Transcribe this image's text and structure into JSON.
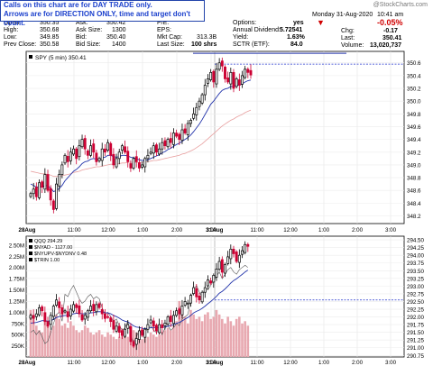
{
  "annotation": {
    "line1": "Calls on this chart are for DAY TRADE only.",
    "line2": "Arrows are for DIRECTION ONLY, time and target don't count."
  },
  "watermark": "@StockCharts.com",
  "header": {
    "date": "Monday  31-Aug-2020",
    "time": "10:41 am",
    "change_pct": "-0.05%",
    "labels": {
      "open": "Open:",
      "high": "High:",
      "low": "Low:",
      "prev_close": "Prev Close:",
      "ask": "Ask:",
      "ask_size": "Ask Size:",
      "bid": "Bid:",
      "bid_size": "Bid Size:",
      "pe": "P/E:",
      "eps": "EPS:",
      "mkt_cap": "Mkt Cap:",
      "last_size": "Last Size:",
      "options": "Options:",
      "annual_dividend": "Annual Dividend:",
      "yield": "Yield:",
      "sctr": "SCTR (ETF):",
      "chg": "Chg:",
      "last": "Last:",
      "volume": "Volume:"
    },
    "values": {
      "open": "350.35",
      "high": "350.68",
      "low": "349.85",
      "prev_close": "350.58",
      "ask": "350.42",
      "ask_size": "1300",
      "bid": "350.40",
      "bid_size": "1400",
      "pe": "",
      "eps": "",
      "mkt_cap": "313.3B",
      "last_size": "100 shrs",
      "options": "yes",
      "annual_dividend": "5.72541",
      "yield": "1.63%",
      "sctr": "84.0",
      "chg": "-0.17",
      "last": "350.41",
      "volume": "13,020,737"
    }
  },
  "colors": {
    "up": "#000000",
    "down": "#cc0033",
    "ma": "#2233aa",
    "ma_slow": "#e8a0a0",
    "dotline": "#2233cc",
    "volume": "#e8a8b0",
    "breadth": "#000000"
  },
  "chart_data": [
    {
      "type": "candlestick",
      "legend": "SPY (5 min) 350.41",
      "x_ticks": [
        "28Aug",
        "11:00",
        "12:00",
        "1:00",
        "2:00",
        "3:00",
        "31Aug",
        "11:00",
        "12:00",
        "1:00",
        "2:00",
        "3:00"
      ],
      "y_ticks": [
        "350.6",
        "350.4",
        "350.2",
        "350.0",
        "349.8",
        "349.6",
        "349.4",
        "349.2",
        "349.0",
        "348.8",
        "348.6",
        "348.4",
        "348.2"
      ],
      "ylim": [
        348.08,
        350.78
      ],
      "reference_level": 350.58,
      "close": [
        348.55,
        348.62,
        348.5,
        348.72,
        348.65,
        348.85,
        348.6,
        348.45,
        348.3,
        348.7,
        348.85,
        349.0,
        349.15,
        349.05,
        349.2,
        349.25,
        349.1,
        349.3,
        349.4,
        349.25,
        349.15,
        349.3,
        349.2,
        349.05,
        349.1,
        349.25,
        349.2,
        349.35,
        349.15,
        349.0,
        349.1,
        349.2,
        349.3,
        349.2,
        349.05,
        348.95,
        349.1,
        349.05,
        348.95,
        349.0,
        349.1,
        349.15,
        349.2,
        349.3,
        349.2,
        349.25,
        349.35,
        349.3,
        349.4,
        349.35,
        349.5,
        349.45,
        349.4,
        349.55,
        349.5,
        349.65,
        349.7,
        349.8,
        349.9,
        350.0,
        350.1,
        350.25,
        350.35,
        350.45,
        350.3,
        350.5,
        350.6,
        350.55,
        350.35,
        350.3,
        350.45,
        350.2,
        350.35,
        350.25,
        350.4,
        350.5,
        350.45,
        350.41
      ],
      "ma_fast": [
        348.7,
        348.68,
        348.65,
        348.66,
        348.65,
        348.68,
        348.67,
        348.64,
        348.58,
        348.6,
        348.63,
        348.68,
        348.75,
        348.8,
        348.85,
        348.9,
        348.93,
        348.97,
        349.02,
        349.05,
        349.06,
        349.09,
        349.1,
        349.09,
        349.09,
        349.11,
        349.12,
        349.15,
        349.15,
        349.13,
        349.12,
        349.13,
        349.15,
        349.15,
        349.14,
        349.12,
        349.11,
        349.1,
        349.08,
        349.07,
        349.07,
        349.08,
        349.1,
        349.12,
        349.14,
        349.16,
        349.19,
        349.21,
        349.24,
        349.26,
        349.29,
        349.32,
        349.34,
        349.37,
        349.4,
        349.43,
        349.47,
        349.52,
        349.58,
        349.64,
        349.71,
        349.79,
        349.87,
        349.95,
        350.0,
        350.06,
        350.12,
        350.17,
        350.19,
        350.2,
        350.23,
        350.23,
        350.25,
        350.25,
        350.27,
        350.3,
        350.32,
        350.33
      ],
      "ma_slow": [
        348.9,
        348.89,
        348.88,
        348.87,
        348.86,
        348.86,
        348.85,
        348.84,
        348.82,
        348.82,
        348.82,
        348.83,
        348.84,
        348.85,
        348.86,
        348.88,
        348.89,
        348.9,
        348.92,
        348.93,
        348.94,
        348.95,
        348.96,
        348.97,
        348.97,
        348.98,
        348.99,
        349.0,
        349.01,
        349.01,
        349.01,
        349.02,
        349.03,
        349.03,
        349.04,
        349.04,
        349.04,
        349.04,
        349.04,
        349.04,
        349.05,
        349.05,
        349.06,
        349.07,
        349.07,
        349.08,
        349.09,
        349.1,
        349.11,
        349.12,
        349.13,
        349.14,
        349.15,
        349.17,
        349.18,
        349.2,
        349.22,
        349.24,
        349.27,
        349.3,
        349.33,
        349.37,
        349.41,
        349.45,
        349.49,
        349.53,
        349.57,
        349.61,
        349.64,
        349.67,
        349.7,
        349.72,
        349.75,
        349.77,
        349.79,
        349.82,
        349.84,
        349.86
      ]
    },
    {
      "type": "candlestick",
      "legend": [
        {
          "text": "QQQ 294.29"
        },
        {
          "text": "$NYAD - 1127.00"
        },
        {
          "text": "$NYUPV-$NYDNV 0.48"
        },
        {
          "text": "$TRIN 1.00"
        }
      ],
      "x_ticks": [
        "28Aug",
        "11:00",
        "12:00",
        "1:00",
        "2:00",
        "3:00",
        "31Aug",
        "11:00",
        "12:00",
        "1:00",
        "2:00",
        "3:00"
      ],
      "y_ticks_right": [
        "294.50",
        "294.25",
        "294.00",
        "293.75",
        "293.50",
        "293.25",
        "293.00",
        "292.75",
        "292.50",
        "292.25",
        "292.00",
        "291.75",
        "291.50",
        "291.25",
        "291.00",
        "290.75"
      ],
      "y_ticks_left": [
        "2.50M",
        "2.25M",
        "2.00M",
        "1.75M",
        "1.50M",
        "1.25M",
        "1.00M",
        "750K",
        "500K",
        "250K"
      ],
      "ylim": [
        290.7,
        294.62
      ],
      "reference_level": 292.55,
      "close": [
        292.05,
        291.95,
        292.1,
        292.3,
        292.2,
        291.85,
        291.7,
        292.05,
        292.35,
        292.55,
        292.3,
        292.1,
        292.2,
        292.0,
        292.25,
        292.4,
        292.3,
        292.1,
        291.9,
        292.05,
        292.2,
        292.35,
        292.2,
        292.4,
        292.3,
        292.1,
        291.95,
        292.0,
        291.85,
        291.6,
        291.7,
        291.5,
        291.4,
        291.6,
        291.75,
        291.2,
        291.05,
        291.3,
        291.55,
        291.4,
        291.6,
        291.75,
        291.9,
        291.7,
        291.55,
        291.75,
        291.65,
        291.8,
        292.0,
        291.85,
        292.05,
        292.2,
        292.1,
        292.35,
        292.5,
        292.45,
        292.7,
        292.95,
        292.65,
        292.55,
        292.8,
        292.95,
        293.2,
        293.1,
        293.35,
        293.55,
        293.8,
        293.45,
        293.7,
        293.95,
        294.2,
        294.05,
        293.8,
        294.0,
        294.15,
        294.35,
        294.29
      ],
      "ma": [
        291.8,
        291.81,
        291.82,
        291.85,
        291.88,
        291.88,
        291.86,
        291.88,
        291.92,
        291.98,
        292.01,
        292.03,
        292.05,
        292.05,
        292.07,
        292.1,
        292.12,
        292.12,
        292.1,
        292.1,
        292.11,
        292.13,
        292.14,
        292.16,
        292.17,
        292.16,
        292.14,
        292.13,
        292.1,
        292.05,
        292.01,
        291.96,
        291.9,
        291.86,
        291.84,
        291.78,
        291.71,
        291.67,
        291.66,
        291.63,
        291.62,
        291.63,
        291.65,
        291.66,
        291.65,
        291.66,
        291.66,
        291.67,
        291.7,
        291.72,
        291.75,
        291.79,
        291.82,
        291.87,
        291.93,
        291.98,
        292.05,
        292.13,
        292.18,
        292.22,
        292.28,
        292.35,
        292.43,
        292.5,
        292.58,
        292.67,
        292.77,
        292.83,
        292.91,
        293.0,
        293.1,
        293.18,
        293.24,
        293.31,
        293.38,
        293.46,
        293.52
      ],
      "breadth": [
        0.55,
        0.6,
        0.5,
        0.58,
        0.45,
        0.3,
        0.35,
        0.55,
        0.75,
        0.95,
        1.0,
        0.8,
        1.4,
        1.35,
        1.5,
        1.6,
        1.45,
        1.3,
        1.2,
        1.25,
        1.35,
        1.4,
        1.3,
        1.35,
        1.3,
        1.1,
        0.95,
        1.0,
        0.9,
        0.8,
        0.85,
        0.7,
        0.6,
        0.65,
        0.8,
        0.5,
        0.3,
        0.45,
        0.6,
        0.5,
        0.55,
        0.65,
        0.7,
        0.6,
        0.55,
        0.6,
        0.5,
        0.65,
        0.7,
        0.6,
        0.65,
        0.75,
        0.7,
        0.85,
        0.9,
        0.95,
        1.3,
        1.5,
        1.6,
        1.45,
        1.35,
        1.55,
        1.5,
        1.6,
        1.7,
        1.8,
        1.9,
        1.75,
        1.85,
        1.95,
        2.0,
        1.9,
        1.85,
        1.95,
        2.0,
        2.05,
        2.0
      ],
      "volume": [
        1.05,
        0.85,
        0.7,
        0.6,
        0.55,
        0.9,
        0.8,
        0.6,
        0.7,
        0.95,
        0.85,
        0.7,
        0.75,
        0.65,
        0.8,
        0.7,
        0.6,
        0.55,
        0.6,
        0.7,
        0.65,
        0.55,
        0.5,
        0.55,
        0.6,
        0.5,
        0.45,
        0.55,
        0.5,
        0.45,
        0.4,
        0.45,
        0.5,
        0.55,
        0.45,
        0.5,
        0.6,
        0.55,
        0.45,
        0.4,
        0.5,
        0.45,
        0.55,
        0.5,
        0.45,
        0.5,
        0.55,
        0.6,
        0.65,
        0.6,
        0.7,
        0.8,
        1.25,
        1.0,
        0.9,
        0.75,
        1.05,
        0.95,
        0.85,
        0.9,
        0.8,
        0.95,
        1.0,
        0.85,
        0.9,
        1.05,
        0.95,
        0.85,
        0.75,
        0.9,
        0.8,
        0.7,
        0.85,
        0.9,
        0.75,
        0.8,
        0.7
      ],
      "volume_ylim": [
        0,
        2.7
      ]
    }
  ]
}
